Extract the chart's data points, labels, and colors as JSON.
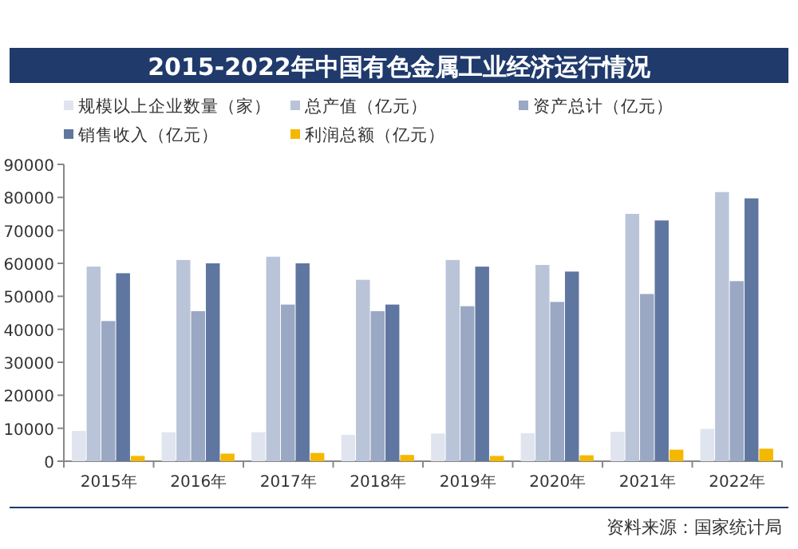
{
  "chart_data": {
    "type": "bar",
    "title": "2015-2022年中国有色金属工业经济运行情况",
    "categories": [
      "2015年",
      "2016年",
      "2017年",
      "2018年",
      "2019年",
      "2020年",
      "2021年",
      "2022年"
    ],
    "series": [
      {
        "name": "规模以上企业数量（家）",
        "color": "#dfe4ee",
        "values": [
          9200,
          8800,
          8800,
          8000,
          8400,
          8500,
          8900,
          9800
        ]
      },
      {
        "name": "总产值（亿元）",
        "color": "#b9c4d8",
        "values": [
          59000,
          61000,
          62000,
          55000,
          61000,
          59500,
          75000,
          81600
        ]
      },
      {
        "name": "资产总计（亿元）",
        "color": "#9aa8c4",
        "values": [
          42500,
          45500,
          47500,
          45500,
          47000,
          48300,
          50700,
          54600
        ]
      },
      {
        "name": "销售收入（亿元）",
        "color": "#5f76a0",
        "values": [
          57000,
          60000,
          60000,
          47500,
          59000,
          57500,
          73000,
          79700
        ]
      },
      {
        "name": "利润总额（亿元）",
        "color": "#f5b800",
        "values": [
          1600,
          2300,
          2500,
          1900,
          1600,
          1800,
          3500,
          3800
        ]
      }
    ],
    "ylim": [
      0,
      90000
    ],
    "yticks": [
      0,
      10000,
      20000,
      30000,
      40000,
      50000,
      60000,
      70000,
      80000,
      90000
    ],
    "grid": false,
    "legend": "top",
    "annotations": [
      "资料来源：国家统计局"
    ]
  }
}
